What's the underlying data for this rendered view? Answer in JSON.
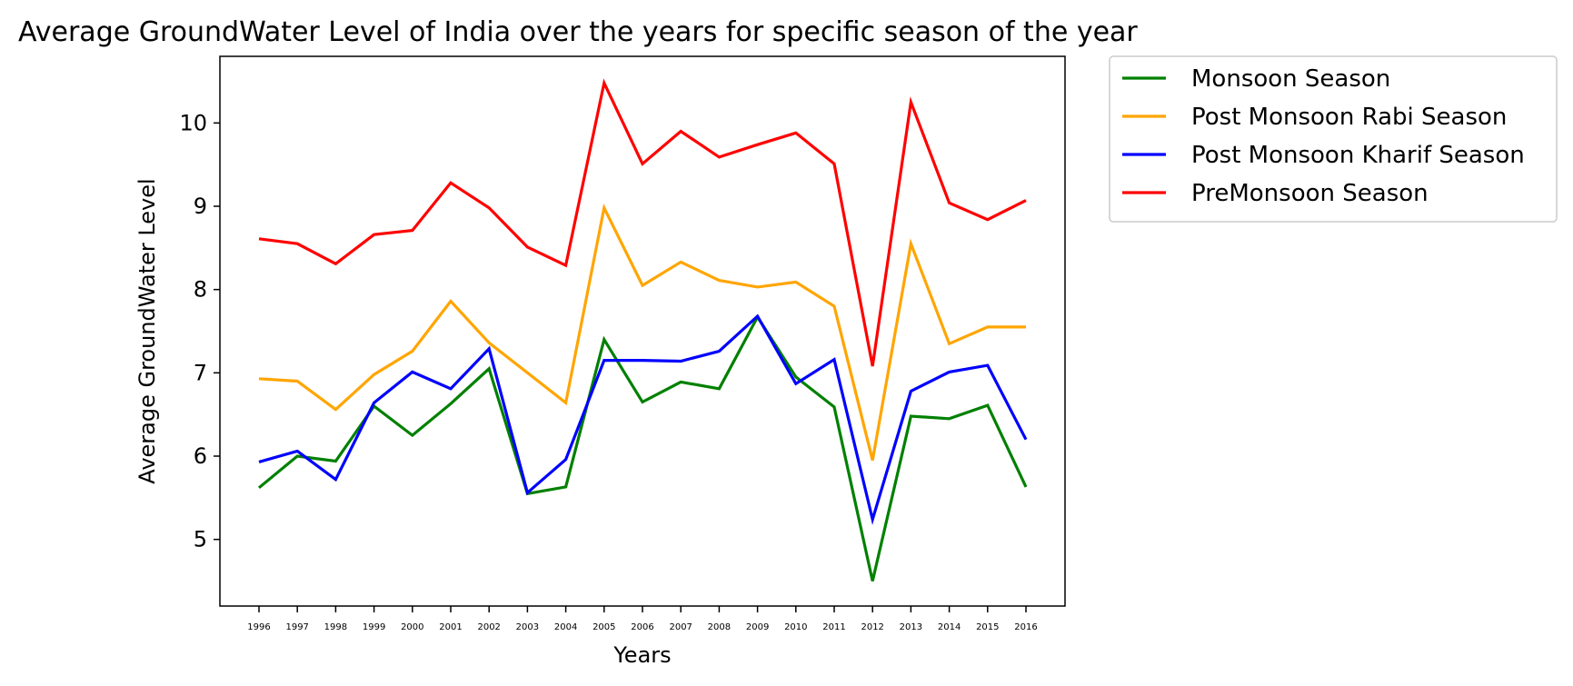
{
  "chart_data": {
    "type": "line",
    "title": "Average GroundWater Level of India over the years for specific season of the year",
    "xlabel": "Years",
    "ylabel": "Average GroundWater Level",
    "x": [
      "1996",
      "1997",
      "1998",
      "1999",
      "2000",
      "2001",
      "2002",
      "2003",
      "2004",
      "2005",
      "2006",
      "2007",
      "2008",
      "2009",
      "2010",
      "2011",
      "2012",
      "2013",
      "2014",
      "2015",
      "2016"
    ],
    "yticks": [
      5,
      6,
      7,
      8,
      9,
      10
    ],
    "ylim": [
      4.2,
      10.8
    ],
    "grid": false,
    "legend_position": "outside-top-right",
    "series": [
      {
        "name": "Monsoon Season",
        "color": "#008000",
        "values": [
          5.62,
          6.0,
          5.94,
          6.6,
          6.25,
          6.63,
          7.05,
          5.55,
          5.63,
          7.4,
          6.65,
          6.89,
          6.81,
          7.67,
          6.95,
          6.59,
          4.5,
          6.48,
          6.45,
          6.61,
          5.63
        ]
      },
      {
        "name": "Post Monsoon Rabi Season",
        "color": "#FFA500",
        "values": [
          6.93,
          6.9,
          6.56,
          6.98,
          7.26,
          7.86,
          7.36,
          7.0,
          6.64,
          8.98,
          8.05,
          8.33,
          8.11,
          8.03,
          8.09,
          7.8,
          5.95,
          8.55,
          7.35,
          7.55,
          7.55
        ]
      },
      {
        "name": "Post Monsoon Kharif Season",
        "color": "#0000FF",
        "values": [
          5.93,
          6.06,
          5.72,
          6.64,
          7.01,
          6.81,
          7.29,
          5.56,
          5.96,
          7.15,
          7.15,
          7.14,
          7.26,
          7.68,
          6.87,
          7.16,
          5.24,
          6.78,
          7.01,
          7.09,
          6.2
        ]
      },
      {
        "name": "PreMonsoon Season",
        "color": "#FF0000",
        "values": [
          8.61,
          8.55,
          8.31,
          8.66,
          8.71,
          9.28,
          8.98,
          8.51,
          8.29,
          10.48,
          9.51,
          9.9,
          9.59,
          9.74,
          9.88,
          9.51,
          7.08,
          10.25,
          9.04,
          8.84,
          9.07
        ]
      }
    ]
  }
}
